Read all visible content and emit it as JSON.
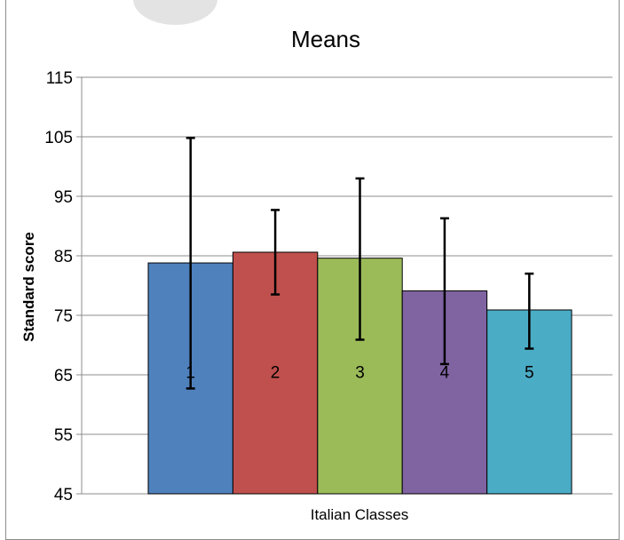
{
  "chart_data": {
    "type": "bar",
    "title": "Means",
    "xlabel": "Italian Classes",
    "ylabel": "Standard score",
    "ylim": [
      45,
      115
    ],
    "yticks": [
      45,
      55,
      65,
      75,
      85,
      95,
      105,
      115
    ],
    "grid": true,
    "categories": [
      "1",
      "2",
      "3",
      "4",
      "5"
    ],
    "values": [
      83.8,
      85.6,
      84.6,
      79.1,
      75.9
    ],
    "error_high": [
      104.8,
      92.7,
      98.0,
      91.3,
      82.0
    ],
    "error_low": [
      62.7,
      78.5,
      70.9,
      66.8,
      69.4
    ],
    "bar_labels": [
      "1",
      "2",
      "3",
      "4",
      "5"
    ],
    "colors": [
      "#4f81bd",
      "#c0504d",
      "#9bbb59",
      "#8064a2",
      "#4bacc6"
    ]
  }
}
